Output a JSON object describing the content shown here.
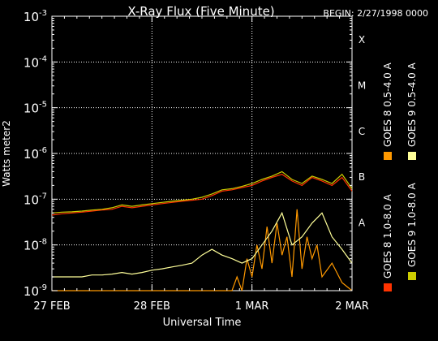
{
  "chart_data": {
    "type": "line",
    "title": "X-Ray Flux (Five Minute)",
    "begin_label": "BEGIN: 2/27/1998 0000",
    "xlabel": "Universal Time",
    "ylabel": "Watts meter2",
    "x_ticks": [
      "27 FEB",
      "28 FEB",
      "1 MAR",
      "2 MAR"
    ],
    "y_ticks": [
      {
        "base": "10",
        "exp": "-9",
        "value": 1e-09
      },
      {
        "base": "10",
        "exp": "-8",
        "value": 1e-08
      },
      {
        "base": "10",
        "exp": "-7",
        "value": 1e-07
      },
      {
        "base": "10",
        "exp": "-6",
        "value": 1e-06
      },
      {
        "base": "10",
        "exp": "-5",
        "value": 1e-05
      },
      {
        "base": "10",
        "exp": "-4",
        "value": 0.0001
      },
      {
        "base": "10",
        "exp": "-3",
        "value": 0.001
      }
    ],
    "ylim": [
      1e-09,
      0.001
    ],
    "yscale": "log",
    "xlim_days": [
      0,
      3
    ],
    "grid": true,
    "flare_classes": [
      {
        "label": "A",
        "value": 1e-08
      },
      {
        "label": "B",
        "value": 1e-07
      },
      {
        "label": "C",
        "value": 1e-06
      },
      {
        "label": "M",
        "value": 1e-05
      },
      {
        "label": "X",
        "value": 0.0001
      }
    ],
    "series": [
      {
        "name": "GOES 8 1.0-8.0 A",
        "color": "#ff3300",
        "x": [
          0,
          0.1,
          0.2,
          0.3,
          0.4,
          0.5,
          0.6,
          0.7,
          0.8,
          0.9,
          1.0,
          1.1,
          1.2,
          1.3,
          1.4,
          1.5,
          1.6,
          1.7,
          1.8,
          1.9,
          2.0,
          2.1,
          2.2,
          2.3,
          2.4,
          2.5,
          2.6,
          2.7,
          2.8,
          2.9,
          3.0
        ],
        "y": [
          4.5e-08,
          4.8e-08,
          5e-08,
          5.2e-08,
          5.5e-08,
          5.8e-08,
          6e-08,
          7e-08,
          6.5e-08,
          7e-08,
          7.5e-08,
          8e-08,
          8.5e-08,
          9e-08,
          9.5e-08,
          1e-07,
          1.2e-07,
          1.5e-07,
          1.6e-07,
          1.8e-07,
          2e-07,
          2.5e-07,
          3e-07,
          3.5e-07,
          2.5e-07,
          2e-07,
          3e-07,
          2.5e-07,
          2e-07,
          3e-07,
          1.5e-07
        ]
      },
      {
        "name": "GOES 8 0.5-4.0 A",
        "color": "#ff9900",
        "x": [
          0,
          0.2,
          0.4,
          0.6,
          0.8,
          1.0,
          1.2,
          1.35,
          1.45,
          1.6,
          1.7,
          1.8,
          1.85,
          1.9,
          1.95,
          2.0,
          2.05,
          2.1,
          2.15,
          2.2,
          2.25,
          2.3,
          2.35,
          2.4,
          2.45,
          2.5,
          2.55,
          2.6,
          2.65,
          2.7,
          2.8,
          2.9,
          3.0
        ],
        "y": [
          1e-09,
          1e-09,
          1e-09,
          1e-09,
          1e-09,
          1e-09,
          1e-09,
          1e-09,
          1e-09,
          1e-09,
          1e-09,
          1e-09,
          2e-09,
          1e-09,
          5e-09,
          2e-09,
          1e-08,
          3e-09,
          2.5e-08,
          4e-09,
          3e-08,
          6e-09,
          1.5e-08,
          2e-09,
          6e-08,
          3e-09,
          1.5e-08,
          5e-09,
          1e-08,
          2e-09,
          4e-09,
          1.5e-09,
          1e-09
        ]
      },
      {
        "name": "GOES 9 1.0-8.0 A",
        "color": "#cccc00",
        "x": [
          0,
          0.1,
          0.2,
          0.3,
          0.4,
          0.5,
          0.6,
          0.7,
          0.8,
          0.9,
          1.0,
          1.1,
          1.2,
          1.3,
          1.4,
          1.5,
          1.6,
          1.7,
          1.8,
          1.9,
          2.0,
          2.1,
          2.2,
          2.3,
          2.4,
          2.5,
          2.6,
          2.7,
          2.8,
          2.9,
          3.0
        ],
        "y": [
          5e-08,
          5.2e-08,
          5.3e-08,
          5.5e-08,
          5.8e-08,
          6e-08,
          6.5e-08,
          7.5e-08,
          7e-08,
          7.5e-08,
          8e-08,
          8.5e-08,
          9e-08,
          9.5e-08,
          1e-07,
          1.1e-07,
          1.3e-07,
          1.6e-07,
          1.7e-07,
          1.9e-07,
          2.2e-07,
          2.7e-07,
          3.2e-07,
          4e-07,
          2.7e-07,
          2.2e-07,
          3.2e-07,
          2.7e-07,
          2.2e-07,
          3.5e-07,
          1.7e-07
        ]
      },
      {
        "name": "GOES 9 0.5-4.0 A",
        "color": "#ffff99",
        "x": [
          0,
          0.1,
          0.2,
          0.3,
          0.4,
          0.5,
          0.6,
          0.7,
          0.8,
          0.9,
          1.0,
          1.1,
          1.2,
          1.3,
          1.4,
          1.5,
          1.6,
          1.7,
          1.8,
          1.9,
          2.0,
          2.1,
          2.2,
          2.3,
          2.4,
          2.5,
          2.6,
          2.7,
          2.8,
          2.9,
          3.0
        ],
        "y": [
          2e-09,
          2e-09,
          2e-09,
          2e-09,
          2.2e-09,
          2.2e-09,
          2.3e-09,
          2.5e-09,
          2.3e-09,
          2.5e-09,
          2.8e-09,
          3e-09,
          3.3e-09,
          3.6e-09,
          4e-09,
          6e-09,
          8e-09,
          6e-09,
          5e-09,
          4e-09,
          5e-09,
          1e-08,
          2e-08,
          5e-08,
          1e-08,
          1.5e-08,
          3e-08,
          5e-08,
          1.5e-08,
          8e-09,
          4e-09
        ]
      }
    ]
  }
}
